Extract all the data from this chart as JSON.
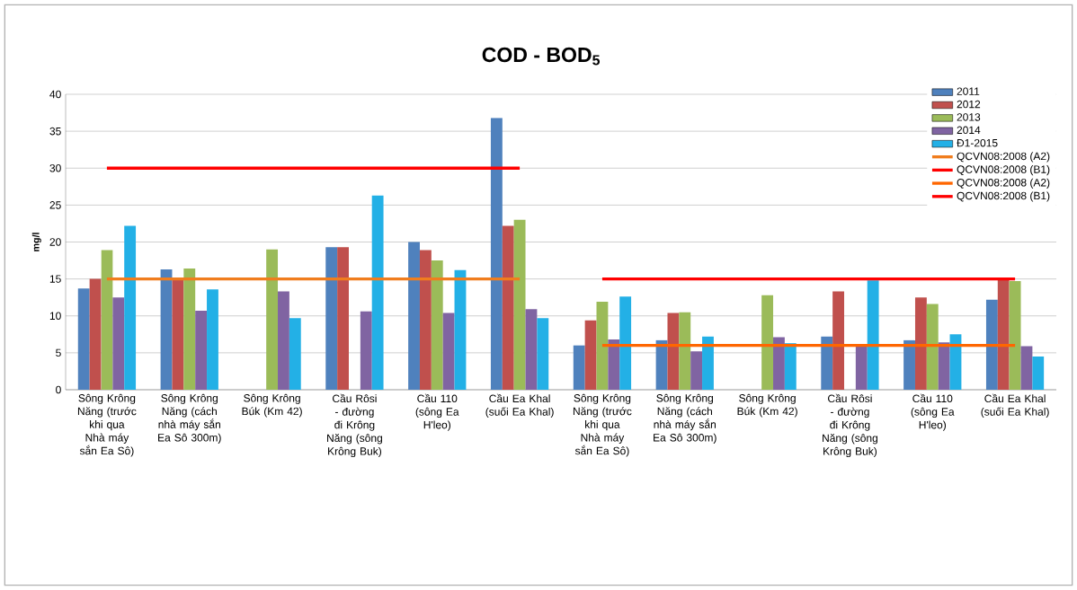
{
  "chart_data": {
    "type": "bar",
    "title": "COD - BOD$_{5}$",
    "ylabel": "mg/l",
    "categories": [
      "Sông Krông Năng (trước khi qua Nhà máy sắn Ea Sô)",
      "Sông Krông Năng (cách nhà máy sắn Ea Sô 300m)",
      "Sông Krông Búk (Km 42)",
      "Cầu Rôsi - đường đi Krông Năng (sông Krông Buk)",
      "Cầu 110 (sông Ea H'leo)",
      "Cầu Ea Khal (suối Ea Khal)",
      "Sông Krông Năng (trước khi qua Nhà máy sắn Ea Sô)",
      "Sông Krông Năng (cách nhà máy sắn Ea Sô 300m)",
      "Sông Krông Búk (Km 42)",
      "Cầu Rôsi - đường đi Krông Năng (sông Krông Buk)",
      "Cầu 110 (sông Ea H'leo)",
      "Cầu Ea Khal (suối Ea Khal)"
    ],
    "series": [
      {
        "name": "2011",
        "color": "#4f81bd",
        "values": [
          13.7,
          16.3,
          null,
          19.3,
          20,
          36.8,
          6,
          6.7,
          null,
          7.2,
          6.7,
          12.2
        ]
      },
      {
        "name": "2012",
        "color": "#c0504d",
        "values": [
          15,
          15.2,
          null,
          19.3,
          18.9,
          22.2,
          9.4,
          10.4,
          null,
          13.3,
          12.5,
          15
        ]
      },
      {
        "name": "2013",
        "color": "#9bbb59",
        "values": [
          18.9,
          16.4,
          19,
          null,
          17.5,
          23,
          11.9,
          10.5,
          12.8,
          null,
          11.6,
          14.7
        ]
      },
      {
        "name": "2014",
        "color": "#8064a2",
        "values": [
          12.5,
          10.7,
          13.3,
          10.6,
          10.4,
          10.9,
          6.8,
          5.2,
          7.1,
          6,
          6.4,
          5.9
        ]
      },
      {
        "name": "Đ1-2015",
        "color": "#23b0e6",
        "values": [
          22.2,
          13.6,
          9.7,
          26.3,
          16.2,
          9.7,
          12.6,
          7.2,
          6.3,
          14.8,
          7.5,
          4.5
        ]
      },
      {
        "name": "QCVN08:2008 (A2)",
        "type": "line",
        "color": "#f07d1e",
        "values": [
          15,
          15,
          15,
          15,
          15,
          15,
          null,
          null,
          null,
          null,
          null,
          null
        ]
      },
      {
        "name": "QCVN08:2008 (B1)",
        "type": "line",
        "color": "#ff0000",
        "values": [
          30,
          30,
          30,
          30,
          30,
          30,
          null,
          null,
          null,
          null,
          null,
          null
        ]
      },
      {
        "name": "QCVN08:2008 (A2)",
        "type": "line",
        "color": "#ff6600",
        "values": [
          null,
          null,
          null,
          null,
          null,
          null,
          6,
          6,
          6,
          6,
          6,
          6
        ]
      },
      {
        "name": "QCVN08:2008 (B1)",
        "type": "line",
        "color": "#ff0000",
        "values": [
          null,
          null,
          null,
          null,
          null,
          null,
          15,
          15,
          15,
          15,
          15,
          15
        ]
      }
    ],
    "ylim": [
      0,
      40
    ],
    "yticks": [
      0,
      5,
      10,
      15,
      20,
      25,
      30,
      35,
      40
    ],
    "grid": "y",
    "legend": "top right"
  }
}
